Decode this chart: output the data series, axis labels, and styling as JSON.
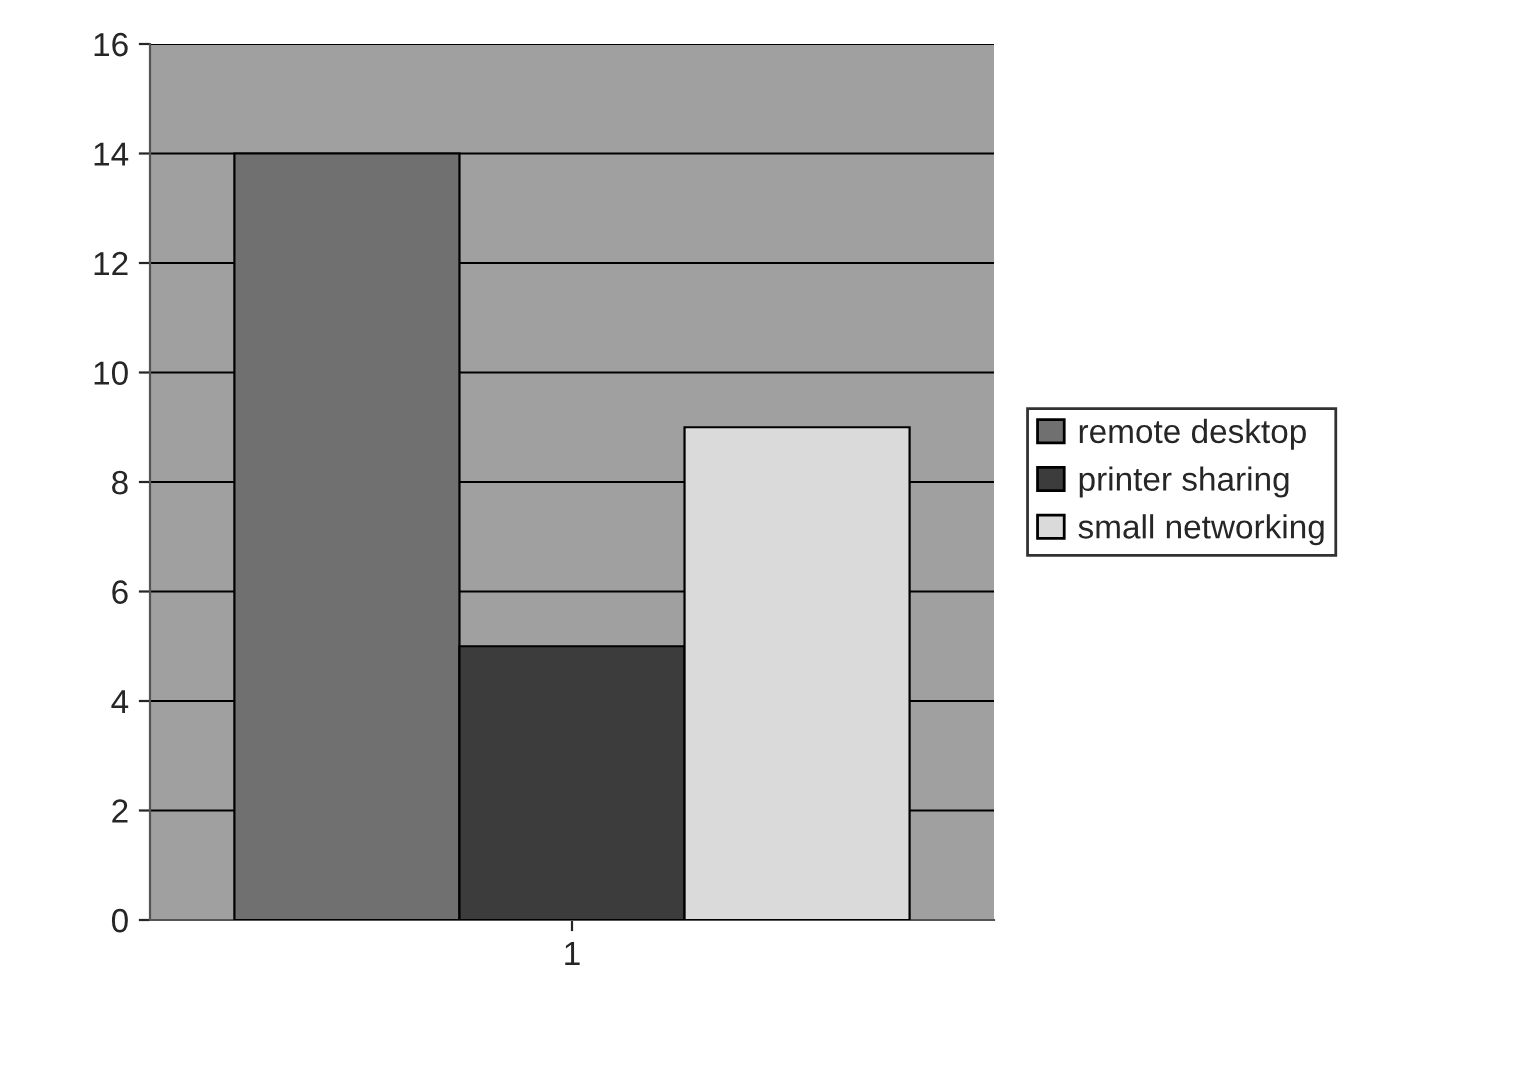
{
  "chart_data": {
    "type": "bar",
    "categories": [
      "1"
    ],
    "series": [
      {
        "name": "remote desktop",
        "color": "#707070",
        "values": [
          14
        ]
      },
      {
        "name": "printer sharing",
        "color": "#3c3c3c",
        "values": [
          5
        ]
      },
      {
        "name": "small networking",
        "color": "#dadada",
        "values": [
          9
        ]
      }
    ],
    "ylim": [
      0,
      16
    ],
    "yticks": [
      0,
      2,
      4,
      6,
      8,
      10,
      12,
      14,
      16
    ],
    "grid": "y",
    "legend": "right"
  }
}
